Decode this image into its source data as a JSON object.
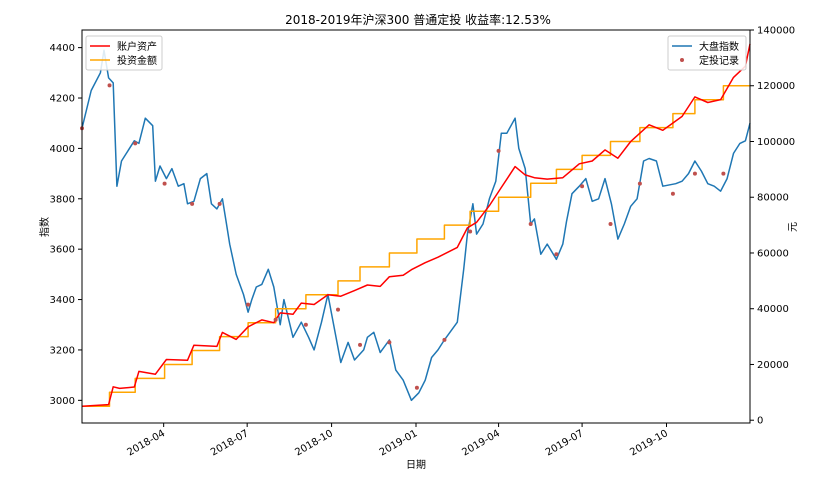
{
  "chart_data": {
    "type": "line",
    "title": "2018-2019年沪深300 普通定投 收益率:12.53%",
    "xlabel": "日期",
    "ylabel_left": "指数",
    "ylabel_right": "元",
    "x_range": [
      "2018-01-02",
      "2019-12-31"
    ],
    "x_ticks": [
      "2018-04",
      "2018-07",
      "2018-10",
      "2019-01",
      "2019-04",
      "2019-07",
      "2019-10"
    ],
    "y_left_lim": [
      2910,
      4470
    ],
    "y_left_ticks": [
      3000,
      3200,
      3400,
      3600,
      3800,
      4000,
      4200,
      4400
    ],
    "y_right_lim": [
      -1000,
      140000
    ],
    "y_right_ticks": [
      0,
      20000,
      40000,
      60000,
      80000,
      100000,
      120000,
      140000
    ],
    "legend_left": {
      "placement": "top-left",
      "entries": [
        "账户资产",
        "投资金额"
      ]
    },
    "legend_right": {
      "placement": "top-right",
      "entries": [
        "大盘指数",
        "定投记录"
      ]
    },
    "colors": {
      "index": "#1f77b4",
      "assets": "#ff0000",
      "invested": "#ffa500",
      "markers": "#c0504d"
    },
    "series": [
      {
        "name": "大盘指数",
        "axis": "left",
        "points": [
          [
            "2018-01-02",
            4080
          ],
          [
            "2018-01-12",
            4230
          ],
          [
            "2018-01-22",
            4300
          ],
          [
            "2018-01-26",
            4390
          ],
          [
            "2018-01-31",
            4280
          ],
          [
            "2018-02-05",
            4260
          ],
          [
            "2018-02-09",
            3850
          ],
          [
            "2018-02-14",
            3950
          ],
          [
            "2018-02-28",
            4030
          ],
          [
            "2018-03-05",
            4020
          ],
          [
            "2018-03-12",
            4120
          ],
          [
            "2018-03-20",
            4090
          ],
          [
            "2018-03-23",
            3870
          ],
          [
            "2018-03-28",
            3930
          ],
          [
            "2018-04-04",
            3880
          ],
          [
            "2018-04-10",
            3920
          ],
          [
            "2018-04-17",
            3850
          ],
          [
            "2018-04-23",
            3860
          ],
          [
            "2018-04-27",
            3780
          ],
          [
            "2018-05-04",
            3790
          ],
          [
            "2018-05-11",
            3880
          ],
          [
            "2018-05-18",
            3900
          ],
          [
            "2018-05-23",
            3780
          ],
          [
            "2018-05-29",
            3760
          ],
          [
            "2018-06-04",
            3800
          ],
          [
            "2018-06-08",
            3710
          ],
          [
            "2018-06-12",
            3620
          ],
          [
            "2018-06-19",
            3500
          ],
          [
            "2018-06-27",
            3420
          ],
          [
            "2018-07-02",
            3350
          ],
          [
            "2018-07-06",
            3400
          ],
          [
            "2018-07-11",
            3450
          ],
          [
            "2018-07-17",
            3460
          ],
          [
            "2018-07-24",
            3520
          ],
          [
            "2018-07-30",
            3450
          ],
          [
            "2018-08-06",
            3300
          ],
          [
            "2018-08-10",
            3400
          ],
          [
            "2018-08-20",
            3250
          ],
          [
            "2018-08-29",
            3310
          ],
          [
            "2018-09-06",
            3250
          ],
          [
            "2018-09-12",
            3200
          ],
          [
            "2018-09-20",
            3310
          ],
          [
            "2018-09-27",
            3420
          ],
          [
            "2018-10-11",
            3150
          ],
          [
            "2018-10-19",
            3230
          ],
          [
            "2018-10-26",
            3160
          ],
          [
            "2018-11-05",
            3200
          ],
          [
            "2018-11-09",
            3250
          ],
          [
            "2018-11-16",
            3270
          ],
          [
            "2018-11-23",
            3190
          ],
          [
            "2018-12-03",
            3240
          ],
          [
            "2018-12-10",
            3120
          ],
          [
            "2018-12-18",
            3080
          ],
          [
            "2018-12-27",
            3000
          ],
          [
            "2019-01-04",
            3030
          ],
          [
            "2019-01-11",
            3080
          ],
          [
            "2019-01-18",
            3170
          ],
          [
            "2019-01-25",
            3200
          ],
          [
            "2019-02-01",
            3240
          ],
          [
            "2019-02-15",
            3310
          ],
          [
            "2019-02-22",
            3520
          ],
          [
            "2019-02-26",
            3660
          ],
          [
            "2019-03-04",
            3780
          ],
          [
            "2019-03-08",
            3660
          ],
          [
            "2019-03-15",
            3700
          ],
          [
            "2019-03-22",
            3800
          ],
          [
            "2019-03-29",
            3870
          ],
          [
            "2019-04-04",
            4060
          ],
          [
            "2019-04-10",
            4060
          ],
          [
            "2019-04-19",
            4120
          ],
          [
            "2019-04-23",
            4000
          ],
          [
            "2019-04-30",
            3920
          ],
          [
            "2019-05-06",
            3700
          ],
          [
            "2019-05-10",
            3720
          ],
          [
            "2019-05-17",
            3580
          ],
          [
            "2019-05-24",
            3620
          ],
          [
            "2019-06-03",
            3560
          ],
          [
            "2019-06-10",
            3620
          ],
          [
            "2019-06-14",
            3710
          ],
          [
            "2019-06-20",
            3820
          ],
          [
            "2019-06-28",
            3850
          ],
          [
            "2019-07-05",
            3880
          ],
          [
            "2019-07-12",
            3790
          ],
          [
            "2019-07-19",
            3800
          ],
          [
            "2019-07-26",
            3880
          ],
          [
            "2019-08-02",
            3780
          ],
          [
            "2019-08-09",
            3640
          ],
          [
            "2019-08-16",
            3700
          ],
          [
            "2019-08-23",
            3770
          ],
          [
            "2019-08-30",
            3800
          ],
          [
            "2019-09-06",
            3950
          ],
          [
            "2019-09-12",
            3960
          ],
          [
            "2019-09-20",
            3950
          ],
          [
            "2019-09-27",
            3850
          ],
          [
            "2019-10-11",
            3860
          ],
          [
            "2019-10-18",
            3870
          ],
          [
            "2019-10-25",
            3900
          ],
          [
            "2019-11-01",
            3950
          ],
          [
            "2019-11-08",
            3910
          ],
          [
            "2019-11-15",
            3860
          ],
          [
            "2019-11-22",
            3850
          ],
          [
            "2019-11-29",
            3830
          ],
          [
            "2019-12-06",
            3880
          ],
          [
            "2019-12-13",
            3980
          ],
          [
            "2019-12-20",
            4020
          ],
          [
            "2019-12-26",
            4030
          ],
          [
            "2019-12-31",
            4100
          ]
        ]
      },
      {
        "name": "账户资产",
        "axis": "right",
        "points": [
          [
            "2018-01-02",
            5000
          ],
          [
            "2018-01-31",
            5600
          ],
          [
            "2018-02-05",
            12000
          ],
          [
            "2018-02-12",
            11400
          ],
          [
            "2018-02-28",
            11900
          ],
          [
            "2018-03-05",
            17500
          ],
          [
            "2018-03-23",
            16500
          ],
          [
            "2018-04-04",
            21800
          ],
          [
            "2018-04-27",
            21500
          ],
          [
            "2018-05-04",
            26900
          ],
          [
            "2018-05-29",
            26500
          ],
          [
            "2018-06-04",
            31500
          ],
          [
            "2018-06-19",
            29000
          ],
          [
            "2018-07-02",
            33500
          ],
          [
            "2018-07-17",
            36000
          ],
          [
            "2018-07-30",
            35000
          ],
          [
            "2018-08-06",
            38500
          ],
          [
            "2018-08-20",
            38000
          ],
          [
            "2018-08-29",
            42000
          ],
          [
            "2018-09-12",
            41500
          ],
          [
            "2018-09-27",
            45000
          ],
          [
            "2018-10-11",
            44500
          ],
          [
            "2018-10-26",
            46500
          ],
          [
            "2018-11-09",
            48500
          ],
          [
            "2018-11-23",
            48000
          ],
          [
            "2018-12-03",
            51500
          ],
          [
            "2018-12-18",
            52000
          ],
          [
            "2018-12-27",
            54000
          ],
          [
            "2019-01-11",
            56500
          ],
          [
            "2019-01-25",
            58500
          ],
          [
            "2019-02-15",
            62000
          ],
          [
            "2019-02-26",
            69000
          ],
          [
            "2019-03-08",
            71000
          ],
          [
            "2019-03-22",
            77000
          ],
          [
            "2019-04-04",
            83500
          ],
          [
            "2019-04-19",
            91000
          ],
          [
            "2019-04-30",
            88000
          ],
          [
            "2019-05-10",
            87000
          ],
          [
            "2019-05-24",
            86500
          ],
          [
            "2019-06-10",
            87000
          ],
          [
            "2019-06-28",
            92000
          ],
          [
            "2019-07-12",
            93000
          ],
          [
            "2019-07-26",
            97000
          ],
          [
            "2019-08-09",
            94000
          ],
          [
            "2019-08-23",
            100000
          ],
          [
            "2019-09-12",
            106000
          ],
          [
            "2019-09-27",
            104000
          ],
          [
            "2019-10-18",
            109000
          ],
          [
            "2019-11-01",
            116000
          ],
          [
            "2019-11-15",
            114000
          ],
          [
            "2019-11-29",
            115000
          ],
          [
            "2019-12-13",
            123000
          ],
          [
            "2019-12-26",
            127000
          ],
          [
            "2019-12-31",
            135000
          ]
        ]
      },
      {
        "name": "投资金额",
        "axis": "right",
        "points": [
          [
            "2018-01-02",
            5000
          ],
          [
            "2018-02-01",
            10000
          ],
          [
            "2018-03-01",
            15000
          ],
          [
            "2018-04-02",
            20000
          ],
          [
            "2018-05-02",
            25000
          ],
          [
            "2018-06-01",
            30000
          ],
          [
            "2018-07-02",
            35000
          ],
          [
            "2018-08-01",
            40000
          ],
          [
            "2018-09-03",
            45000
          ],
          [
            "2018-10-08",
            50000
          ],
          [
            "2018-11-01",
            55000
          ],
          [
            "2018-12-03",
            60000
          ],
          [
            "2019-01-02",
            65000
          ],
          [
            "2019-02-01",
            70000
          ],
          [
            "2019-03-01",
            75000
          ],
          [
            "2019-04-01",
            80000
          ],
          [
            "2019-05-06",
            85000
          ],
          [
            "2019-06-03",
            90000
          ],
          [
            "2019-07-01",
            95000
          ],
          [
            "2019-08-01",
            100000
          ],
          [
            "2019-09-02",
            105000
          ],
          [
            "2019-10-08",
            110000
          ],
          [
            "2019-11-01",
            115000
          ],
          [
            "2019-12-02",
            120000
          ],
          [
            "2019-12-31",
            120000
          ]
        ]
      },
      {
        "name": "定投记录",
        "axis": "left",
        "style": "markers",
        "points": [
          [
            "2018-01-02",
            4080
          ],
          [
            "2018-02-01",
            4250
          ],
          [
            "2018-03-01",
            4020
          ],
          [
            "2018-04-02",
            3860
          ],
          [
            "2018-05-02",
            3780
          ],
          [
            "2018-06-01",
            3780
          ],
          [
            "2018-07-02",
            3380
          ],
          [
            "2018-08-01",
            3320
          ],
          [
            "2018-09-03",
            3300
          ],
          [
            "2018-10-08",
            3360
          ],
          [
            "2018-11-01",
            3220
          ],
          [
            "2018-12-03",
            3230
          ],
          [
            "2019-01-02",
            3050
          ],
          [
            "2019-02-01",
            3240
          ],
          [
            "2019-03-01",
            3670
          ],
          [
            "2019-04-01",
            3990
          ],
          [
            "2019-05-06",
            3700
          ],
          [
            "2019-06-03",
            3580
          ],
          [
            "2019-07-01",
            3850
          ],
          [
            "2019-08-01",
            3700
          ],
          [
            "2019-09-02",
            3860
          ],
          [
            "2019-10-08",
            3820
          ],
          [
            "2019-11-01",
            3900
          ],
          [
            "2019-12-02",
            3900
          ]
        ]
      }
    ]
  }
}
